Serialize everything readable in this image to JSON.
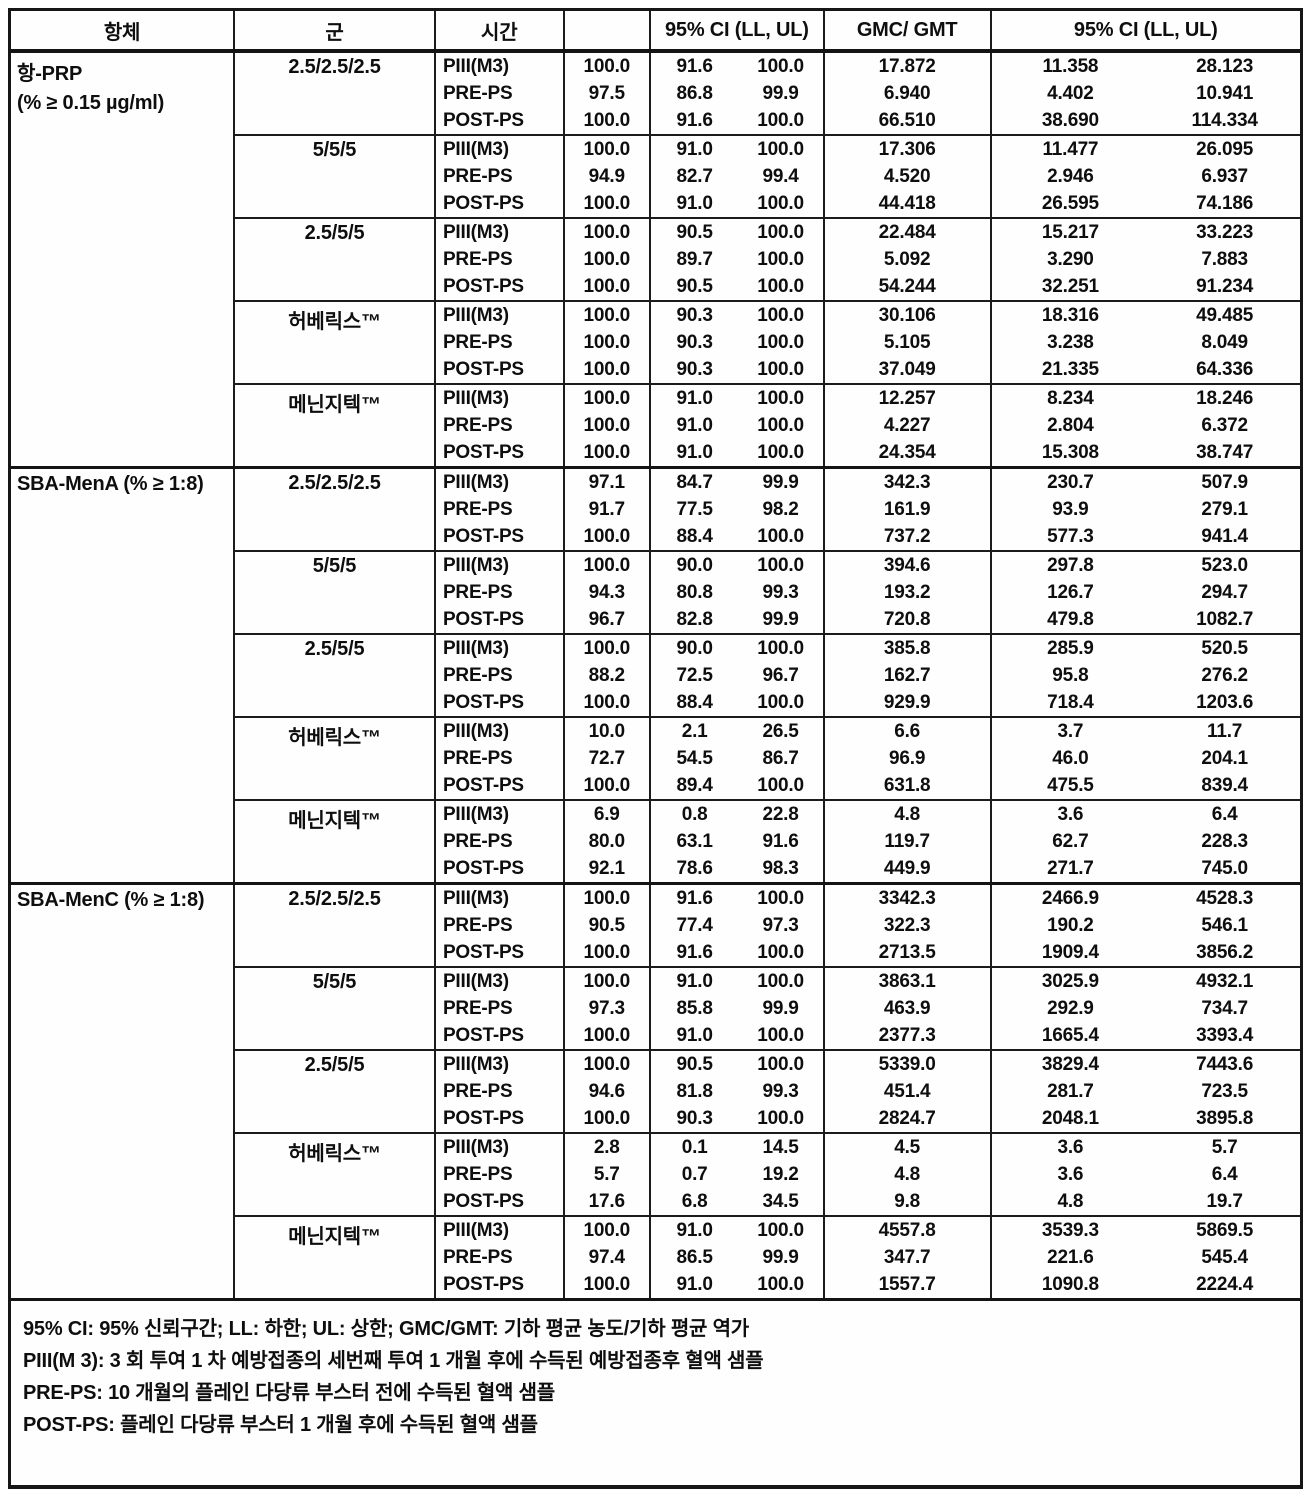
{
  "header": {
    "antibody": "항체",
    "group": "군",
    "time": "시간",
    "value": "",
    "ci": "95% CI (LL, UL)",
    "gmc": "GMC/ GMT",
    "ci2": "95% CI (LL, UL)"
  },
  "sections": [
    {
      "label": "항-PRP",
      "sublabel": "(% ≥ 0.15 µg/ml)",
      "groups": [
        {
          "name": "2.5/2.5/2.5",
          "rows": [
            [
              "PIII(M3)",
              "100.0",
              "91.6",
              "100.0",
              "17.872",
              "11.358",
              "28.123"
            ],
            [
              "PRE-PS",
              "97.5",
              "86.8",
              "99.9",
              "6.940",
              "4.402",
              "10.941"
            ],
            [
              "POST-PS",
              "100.0",
              "91.6",
              "100.0",
              "66.510",
              "38.690",
              "114.334"
            ]
          ]
        },
        {
          "name": "5/5/5",
          "rows": [
            [
              "PIII(M3)",
              "100.0",
              "91.0",
              "100.0",
              "17.306",
              "11.477",
              "26.095"
            ],
            [
              "PRE-PS",
              "94.9",
              "82.7",
              "99.4",
              "4.520",
              "2.946",
              "6.937"
            ],
            [
              "POST-PS",
              "100.0",
              "91.0",
              "100.0",
              "44.418",
              "26.595",
              "74.186"
            ]
          ]
        },
        {
          "name": "2.5/5/5",
          "rows": [
            [
              "PIII(M3)",
              "100.0",
              "90.5",
              "100.0",
              "22.484",
              "15.217",
              "33.223"
            ],
            [
              "PRE-PS",
              "100.0",
              "89.7",
              "100.0",
              "5.092",
              "3.290",
              "7.883"
            ],
            [
              "POST-PS",
              "100.0",
              "90.5",
              "100.0",
              "54.244",
              "32.251",
              "91.234"
            ]
          ]
        },
        {
          "name": "허베릭스™",
          "rows": [
            [
              "PIII(M3)",
              "100.0",
              "90.3",
              "100.0",
              "30.106",
              "18.316",
              "49.485"
            ],
            [
              "PRE-PS",
              "100.0",
              "90.3",
              "100.0",
              "5.105",
              "3.238",
              "8.049"
            ],
            [
              "POST-PS",
              "100.0",
              "90.3",
              "100.0",
              "37.049",
              "21.335",
              "64.336"
            ]
          ]
        },
        {
          "name": "메닌지텍™",
          "rows": [
            [
              "PIII(M3)",
              "100.0",
              "91.0",
              "100.0",
              "12.257",
              "8.234",
              "18.246"
            ],
            [
              "PRE-PS",
              "100.0",
              "91.0",
              "100.0",
              "4.227",
              "2.804",
              "6.372"
            ],
            [
              "POST-PS",
              "100.0",
              "91.0",
              "100.0",
              "24.354",
              "15.308",
              "38.747"
            ]
          ]
        }
      ]
    },
    {
      "label": "SBA-MenA (% ≥ 1:8)",
      "sublabel": "",
      "groups": [
        {
          "name": "2.5/2.5/2.5",
          "rows": [
            [
              "PIII(M3)",
              "97.1",
              "84.7",
              "99.9",
              "342.3",
              "230.7",
              "507.9"
            ],
            [
              "PRE-PS",
              "91.7",
              "77.5",
              "98.2",
              "161.9",
              "93.9",
              "279.1"
            ],
            [
              "POST-PS",
              "100.0",
              "88.4",
              "100.0",
              "737.2",
              "577.3",
              "941.4"
            ]
          ]
        },
        {
          "name": "5/5/5",
          "rows": [
            [
              "PIII(M3)",
              "100.0",
              "90.0",
              "100.0",
              "394.6",
              "297.8",
              "523.0"
            ],
            [
              "PRE-PS",
              "94.3",
              "80.8",
              "99.3",
              "193.2",
              "126.7",
              "294.7"
            ],
            [
              "POST-PS",
              "96.7",
              "82.8",
              "99.9",
              "720.8",
              "479.8",
              "1082.7"
            ]
          ]
        },
        {
          "name": "2.5/5/5",
          "rows": [
            [
              "PIII(M3)",
              "100.0",
              "90.0",
              "100.0",
              "385.8",
              "285.9",
              "520.5"
            ],
            [
              "PRE-PS",
              "88.2",
              "72.5",
              "96.7",
              "162.7",
              "95.8",
              "276.2"
            ],
            [
              "POST-PS",
              "100.0",
              "88.4",
              "100.0",
              "929.9",
              "718.4",
              "1203.6"
            ]
          ]
        },
        {
          "name": "허베릭스™",
          "rows": [
            [
              "PIII(M3)",
              "10.0",
              "2.1",
              "26.5",
              "6.6",
              "3.7",
              "11.7"
            ],
            [
              "PRE-PS",
              "72.7",
              "54.5",
              "86.7",
              "96.9",
              "46.0",
              "204.1"
            ],
            [
              "POST-PS",
              "100.0",
              "89.4",
              "100.0",
              "631.8",
              "475.5",
              "839.4"
            ]
          ]
        },
        {
          "name": "메닌지텍™",
          "rows": [
            [
              "PIII(M3)",
              "6.9",
              "0.8",
              "22.8",
              "4.8",
              "3.6",
              "6.4"
            ],
            [
              "PRE-PS",
              "80.0",
              "63.1",
              "91.6",
              "119.7",
              "62.7",
              "228.3"
            ],
            [
              "POST-PS",
              "92.1",
              "78.6",
              "98.3",
              "449.9",
              "271.7",
              "745.0"
            ]
          ]
        }
      ]
    },
    {
      "label": "SBA-MenC (% ≥ 1:8)",
      "sublabel": "",
      "groups": [
        {
          "name": "2.5/2.5/2.5",
          "rows": [
            [
              "PIII(M3)",
              "100.0",
              "91.6",
              "100.0",
              "3342.3",
              "2466.9",
              "4528.3"
            ],
            [
              "PRE-PS",
              "90.5",
              "77.4",
              "97.3",
              "322.3",
              "190.2",
              "546.1"
            ],
            [
              "POST-PS",
              "100.0",
              "91.6",
              "100.0",
              "2713.5",
              "1909.4",
              "3856.2"
            ]
          ]
        },
        {
          "name": "5/5/5",
          "rows": [
            [
              "PIII(M3)",
              "100.0",
              "91.0",
              "100.0",
              "3863.1",
              "3025.9",
              "4932.1"
            ],
            [
              "PRE-PS",
              "97.3",
              "85.8",
              "99.9",
              "463.9",
              "292.9",
              "734.7"
            ],
            [
              "POST-PS",
              "100.0",
              "91.0",
              "100.0",
              "2377.3",
              "1665.4",
              "3393.4"
            ]
          ]
        },
        {
          "name": "2.5/5/5",
          "rows": [
            [
              "PIII(M3)",
              "100.0",
              "90.5",
              "100.0",
              "5339.0",
              "3829.4",
              "7443.6"
            ],
            [
              "PRE-PS",
              "94.6",
              "81.8",
              "99.3",
              "451.4",
              "281.7",
              "723.5"
            ],
            [
              "POST-PS",
              "100.0",
              "90.3",
              "100.0",
              "2824.7",
              "2048.1",
              "3895.8"
            ]
          ]
        },
        {
          "name": "허베릭스™",
          "rows": [
            [
              "PIII(M3)",
              "2.8",
              "0.1",
              "14.5",
              "4.5",
              "3.6",
              "5.7"
            ],
            [
              "PRE-PS",
              "5.7",
              "0.7",
              "19.2",
              "4.8",
              "3.6",
              "6.4"
            ],
            [
              "POST-PS",
              "17.6",
              "6.8",
              "34.5",
              "9.8",
              "4.8",
              "19.7"
            ]
          ]
        },
        {
          "name": "메닌지텍™",
          "rows": [
            [
              "PIII(M3)",
              "100.0",
              "91.0",
              "100.0",
              "4557.8",
              "3539.3",
              "5869.5"
            ],
            [
              "PRE-PS",
              "97.4",
              "86.5",
              "99.9",
              "347.7",
              "221.6",
              "545.4"
            ],
            [
              "POST-PS",
              "100.0",
              "91.0",
              "100.0",
              "1557.7",
              "1090.8",
              "2224.4"
            ]
          ]
        }
      ]
    }
  ],
  "footnotes": [
    "95% CI: 95% 신뢰구간; LL: 하한; UL: 상한; GMC/GMT: 기하 평균 농도/기하 평균 역가",
    "PIII(M 3): 3 회 투여 1 차 예방접종의 세번째 투여 1 개월 후에 수득된 예방접종후 혈액 샘플",
    "PRE-PS: 10 개월의 플레인 다당류 부스터 전에 수득된 혈액 샘플",
    "POST-PS: 플레인 다당류 부스터 1 개월 후에 수득된 혈액 샘플"
  ]
}
